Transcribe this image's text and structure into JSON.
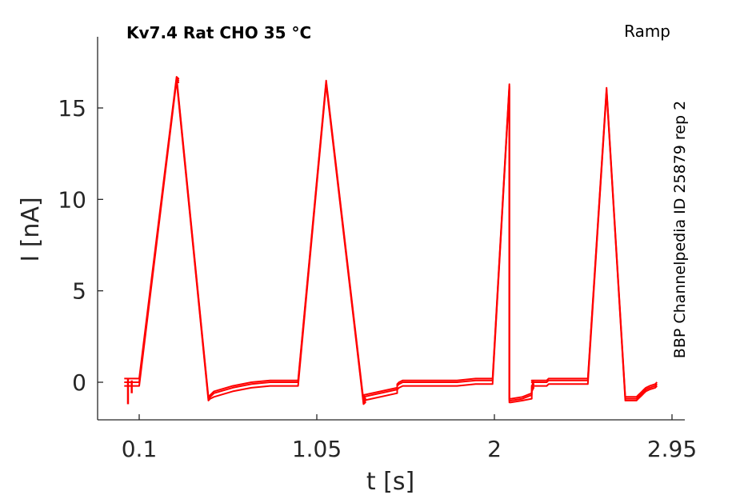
{
  "chart_data": {
    "type": "line",
    "title": "Kv7.4  Rat  CHO  35 °C",
    "protocol": "Ramp",
    "side_label": "BBP Channelpedia ID 25879 rep 2",
    "xlabel": "t [s]",
    "ylabel": "I [nA]",
    "xlim": [
      -0.02,
      3.0
    ],
    "ylim": [
      -2.1,
      18.5
    ],
    "x_ticks": [
      0.1,
      1.05,
      2,
      2.95
    ],
    "x_tick_labels": [
      "0.1",
      "1.05",
      "2",
      "2.95"
    ],
    "y_ticks": [
      0,
      5,
      10,
      15
    ],
    "y_tick_labels": [
      "0",
      "5",
      "10",
      "15"
    ],
    "grid": false,
    "color": "#ff0000",
    "series": [
      {
        "x": [
          0.02,
          0.02,
          0.09,
          0.09,
          0.1,
          0.3,
          0.3,
          0.31,
          0.3,
          0.47,
          0.47,
          0.48,
          0.5,
          0.6,
          0.7,
          0.8,
          0.88,
          0.94,
          0.94,
          0.95,
          1.1,
          1.3,
          1.3,
          1.31,
          1.3,
          1.48,
          1.48,
          1.49,
          1.51,
          1.6,
          1.7,
          1.8,
          1.9,
          1.99,
          2.08,
          2.08,
          2.09,
          2.15,
          2.2,
          2.2,
          2.21,
          2.2,
          2.28,
          2.28,
          2.29,
          2.31,
          2.4,
          2.5,
          2.6,
          2.7,
          2.76,
          2.77,
          2.78,
          2.79,
          2.8,
          2.81,
          2.83,
          2.86,
          2.87
        ],
        "y": [
          0.2,
          0.2,
          0.2,
          0.2,
          0.2,
          16.7,
          16.7,
          16.6,
          16.7,
          -0.8,
          -0.8,
          -0.7,
          -0.5,
          -0.2,
          0.0,
          0.1,
          0.1,
          0.1,
          0.1,
          0.1,
          16.5,
          -1.0,
          -1.0,
          -0.9,
          -0.7,
          -0.3,
          -0.1,
          0.0,
          0.1,
          0.1,
          0.1,
          0.1,
          0.2,
          0.2,
          16.3,
          -0.9,
          -0.9,
          -0.8,
          -0.6,
          -0.2,
          0.0,
          0.1,
          0.1,
          0.1,
          0.2,
          0.2,
          0.2,
          0.2,
          16.1,
          -0.8,
          -0.8,
          -0.7,
          -0.6,
          -0.5,
          -0.4,
          -0.3,
          -0.2,
          -0.1,
          0.0
        ]
      },
      {
        "x": [
          0.02,
          0.02,
          0.09,
          0.09,
          0.1,
          0.3,
          0.3,
          0.31,
          0.3,
          0.47,
          0.47,
          0.48,
          0.5,
          0.6,
          0.7,
          0.8,
          0.88,
          0.94,
          0.94,
          0.95,
          1.1,
          1.3,
          1.3,
          1.31,
          1.3,
          1.48,
          1.48,
          1.49,
          1.51,
          1.6,
          1.7,
          1.8,
          1.9,
          1.99,
          2.08,
          2.08,
          2.09,
          2.15,
          2.2,
          2.2,
          2.21,
          2.2,
          2.28,
          2.28,
          2.29,
          2.31,
          2.4,
          2.5,
          2.6,
          2.7,
          2.76,
          2.77,
          2.78,
          2.79,
          2.8,
          2.81,
          2.83,
          2.86,
          2.87
        ],
        "y": [
          0.0,
          0.0,
          0.0,
          0.0,
          0.0,
          16.6,
          16.6,
          16.5,
          16.6,
          -0.9,
          -0.9,
          -0.8,
          -0.6,
          -0.3,
          -0.1,
          0.0,
          0.0,
          0.0,
          0.0,
          0.0,
          16.4,
          -1.1,
          -1.1,
          -1.0,
          -0.8,
          -0.4,
          -0.2,
          -0.1,
          0.0,
          0.0,
          0.0,
          0.0,
          0.1,
          0.1,
          16.2,
          -1.0,
          -1.0,
          -0.9,
          -0.7,
          -0.3,
          -0.1,
          0.0,
          0.0,
          0.0,
          0.1,
          0.1,
          0.1,
          0.1,
          16.0,
          -0.9,
          -0.9,
          -0.8,
          -0.7,
          -0.6,
          -0.5,
          -0.4,
          -0.3,
          -0.2,
          -0.1
        ]
      },
      {
        "x": [
          0.02,
          0.02,
          0.09,
          0.09,
          0.1,
          0.3,
          0.3,
          0.31,
          0.3,
          0.47,
          0.47,
          0.48,
          0.5,
          0.6,
          0.7,
          0.8,
          0.88,
          0.94,
          0.94,
          0.95,
          1.1,
          1.3,
          1.3,
          1.31,
          1.3,
          1.48,
          1.48,
          1.49,
          1.51,
          1.6,
          1.7,
          1.8,
          1.9,
          1.99,
          2.08,
          2.08,
          2.09,
          2.15,
          2.2,
          2.2,
          2.21,
          2.2,
          2.28,
          2.28,
          2.29,
          2.31,
          2.4,
          2.5,
          2.6,
          2.7,
          2.76,
          2.77,
          2.78,
          2.79,
          2.8,
          2.81,
          2.83,
          2.86,
          2.87
        ],
        "y": [
          -0.2,
          -0.2,
          -0.2,
          -0.2,
          -0.2,
          16.5,
          16.5,
          16.4,
          16.5,
          -1.0,
          -1.0,
          -0.9,
          -0.8,
          -0.5,
          -0.3,
          -0.2,
          -0.2,
          -0.2,
          -0.2,
          -0.2,
          16.3,
          -1.2,
          -1.2,
          -1.1,
          -1.0,
          -0.6,
          -0.4,
          -0.3,
          -0.2,
          -0.2,
          -0.2,
          -0.2,
          -0.1,
          -0.1,
          16.1,
          -1.1,
          -1.1,
          -1.0,
          -0.9,
          -0.5,
          -0.3,
          -0.2,
          -0.2,
          -0.2,
          -0.1,
          -0.1,
          -0.1,
          -0.1,
          15.9,
          -1.0,
          -1.0,
          -0.9,
          -0.8,
          -0.7,
          -0.6,
          -0.5,
          -0.4,
          -0.3,
          -0.2
        ]
      }
    ],
    "spikes": [
      {
        "x": 0.04,
        "y": [
          0.2,
          -1.2
        ]
      },
      {
        "x": 0.06,
        "y": [
          0.1,
          -0.6
        ]
      }
    ]
  }
}
